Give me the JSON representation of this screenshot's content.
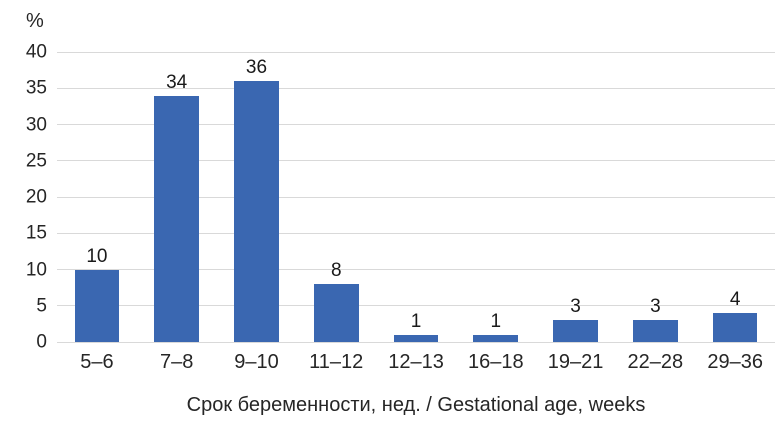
{
  "chart_data": {
    "type": "bar",
    "categories": [
      "5–6",
      "7–8",
      "9–10",
      "11–12",
      "12–13",
      "16–18",
      "19–21",
      "22–28",
      "29–36"
    ],
    "values": [
      10,
      34,
      36,
      8,
      1,
      1,
      3,
      3,
      4
    ],
    "title": "",
    "xlabel": "Срок беременности, нед. / Gestational age, weeks",
    "ylabel": "%",
    "ylim": [
      0,
      40
    ],
    "yticks": [
      0,
      5,
      10,
      15,
      20,
      25,
      30,
      35,
      40
    ],
    "grid": true,
    "legend": "none",
    "bar_color": "#3a67b1",
    "gridline_color": "#d9d9d9",
    "text_color": "#262626"
  }
}
